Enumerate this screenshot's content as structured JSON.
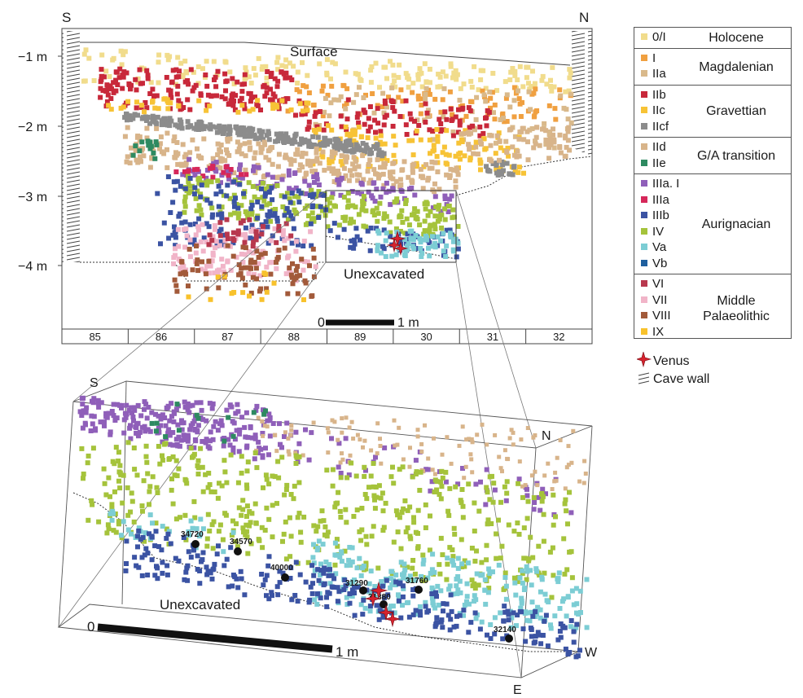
{
  "colors": {
    "0/I": "#f1dc8c",
    "I": "#f0a040",
    "IIa": "#d9b98b",
    "IIb": "#c8283a",
    "IIc": "#f7c336",
    "IIcf": "#8c8c8c",
    "IId": "#d8b48a",
    "IIe": "#2e8a61",
    "IIIa. I": "#8f5fb9",
    "IIIa": "#d6275a",
    "IIIb": "#3b53a3",
    "IV": "#a5c33b",
    "Va": "#7ccdd4",
    "Vb": "#1f5f9e",
    "VI": "#b8384e",
    "VII": "#f1b4c8",
    "VIII": "#a25a3a",
    "IX": "#f8c22c",
    "venus": "#d6232e",
    "wall": "#555555"
  },
  "section": {
    "compass_left": "S",
    "compass_right": "N",
    "surface_label": "Surface",
    "depth_ticks": [
      "−1 m",
      "−2 m",
      "−3 m",
      "−4 m"
    ],
    "unexcavated_label": "Unexcavated",
    "scale_start": "0",
    "scale_end": "1 m",
    "squares": [
      "85",
      "86",
      "87",
      "88",
      "89",
      "30",
      "31",
      "32"
    ]
  },
  "legend": {
    "groups": [
      {
        "name": "Holocene",
        "layers": [
          "0/I"
        ]
      },
      {
        "name": "Magdalenian",
        "layers": [
          "I",
          "IIa"
        ]
      },
      {
        "name": "Gravettian",
        "layers": [
          "IIb",
          "IIc",
          "IIcf"
        ]
      },
      {
        "name": "G/A transition",
        "layers": [
          "IId",
          "IIe"
        ]
      },
      {
        "name": "Aurignacian",
        "layers": [
          "IIIa. I",
          "IIIa",
          "IIIb",
          "IV",
          "Va",
          "Vb"
        ]
      },
      {
        "name": "Middle Palaeolithic",
        "layers": [
          "VI",
          "VII",
          "VIII",
          "IX"
        ]
      }
    ],
    "venus_label": "Venus",
    "cave_wall_label": "Cave wall"
  },
  "detail": {
    "compass_s": "S",
    "compass_n": "N",
    "compass_w": "W",
    "compass_e": "E",
    "unexcavated_label": "Unexcavated",
    "scale_start": "0",
    "scale_end": "1 m",
    "dates": [
      "34720",
      "34570",
      "40000",
      "31290",
      "31760",
      "31380",
      "32140"
    ]
  }
}
